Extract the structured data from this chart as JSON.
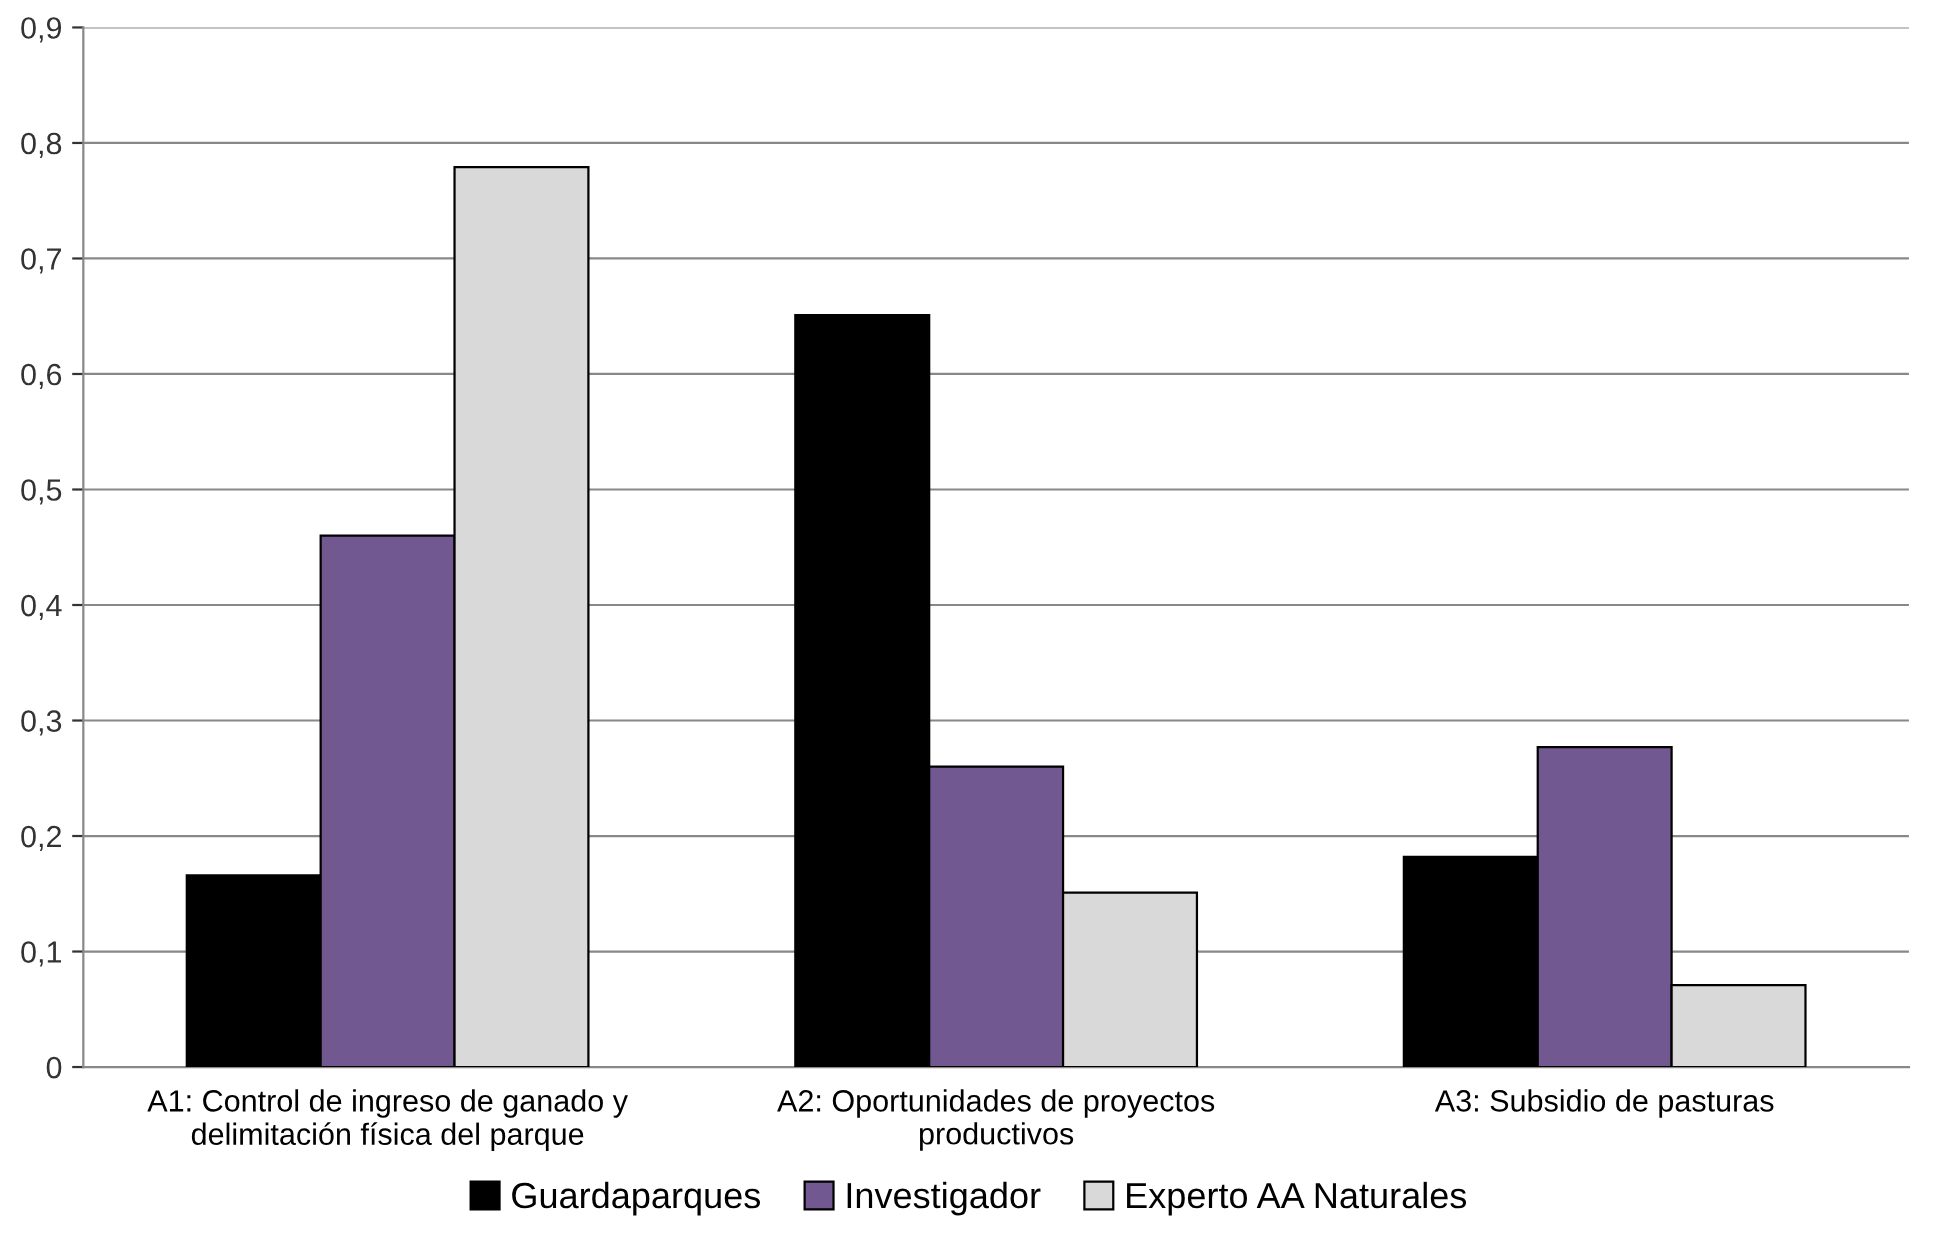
{
  "chart_data": {
    "type": "bar",
    "categories": [
      "A1: Control de ingreso de ganado y\ndelimitación física del parque",
      "A2: Oportunidades de proyectos\nproductivos",
      "A3: Subsidio de pasturas"
    ],
    "series": [
      {
        "name": "Guardaparques",
        "color": "#000000",
        "values": [
          0.166,
          0.651,
          0.182
        ]
      },
      {
        "name": "Investigador",
        "color": "#725891",
        "values": [
          0.46,
          0.26,
          0.277
        ]
      },
      {
        "name": "Experto AA Naturales",
        "color": "#d9d9d9",
        "values": [
          0.779,
          0.151,
          0.071
        ]
      }
    ],
    "ylim": [
      0,
      0.9
    ],
    "yticks": [
      0,
      {
        "value": 0.1,
        "label": "0,1"
      },
      {
        "value": 0.2,
        "label": "0,2"
      },
      {
        "value": 0.3,
        "label": "0,3"
      },
      {
        "value": 0.4,
        "label": "0,4"
      },
      {
        "value": 0.5,
        "label": "0,5"
      },
      {
        "value": 0.6,
        "label": "0,6"
      },
      {
        "value": 0.7,
        "label": "0,7"
      },
      {
        "value": 0.8,
        "label": "0,8"
      },
      {
        "value": 0.9,
        "label": "0,9"
      }
    ],
    "grid": "y",
    "legend": "bottom"
  }
}
